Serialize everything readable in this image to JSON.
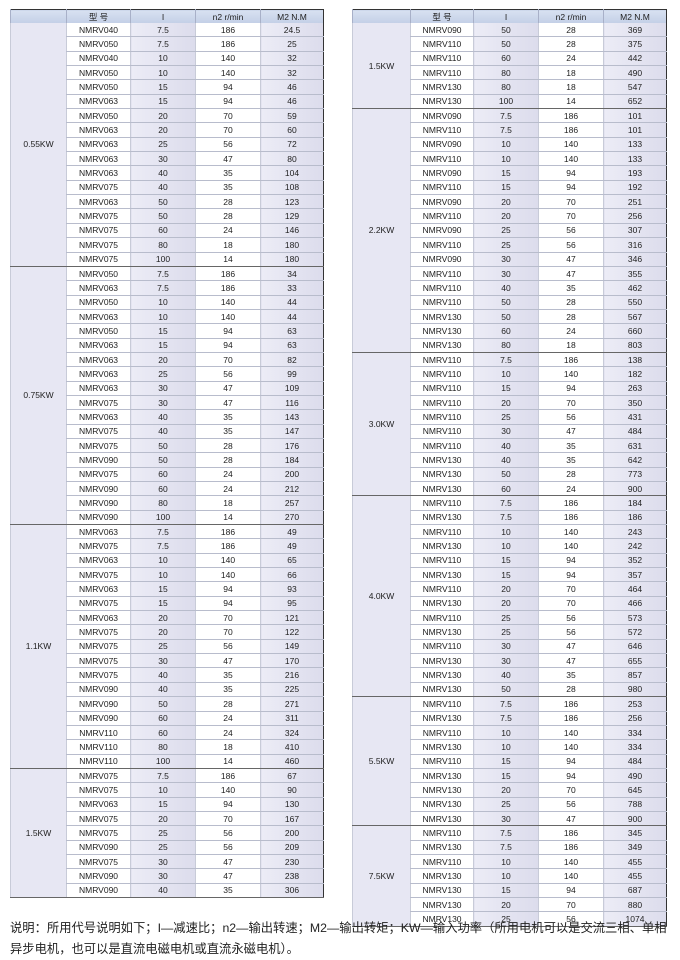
{
  "headers": [
    "",
    "型 号",
    "I",
    "n2 r/min",
    "M2 N.M"
  ],
  "left_table": [
    {
      "power": "0.55KW",
      "rows": [
        [
          "NMRV040",
          "7.5",
          "186",
          "24.5"
        ],
        [
          "NMRV050",
          "7.5",
          "186",
          "25"
        ],
        [
          "NMRV040",
          "10",
          "140",
          "32"
        ],
        [
          "NMRV050",
          "10",
          "140",
          "32"
        ],
        [
          "NMRV050",
          "15",
          "94",
          "46"
        ],
        [
          "NMRV063",
          "15",
          "94",
          "46"
        ],
        [
          "NMRV050",
          "20",
          "70",
          "59"
        ],
        [
          "NMRV063",
          "20",
          "70",
          "60"
        ],
        [
          "NMRV063",
          "25",
          "56",
          "72"
        ],
        [
          "NMRV063",
          "30",
          "47",
          "80"
        ],
        [
          "NMRV063",
          "40",
          "35",
          "104"
        ],
        [
          "NMRV075",
          "40",
          "35",
          "108"
        ],
        [
          "NMRV063",
          "50",
          "28",
          "123"
        ],
        [
          "NMRV075",
          "50",
          "28",
          "129"
        ],
        [
          "NMRV075",
          "60",
          "24",
          "146"
        ],
        [
          "NMRV075",
          "80",
          "18",
          "180"
        ],
        [
          "NMRV075",
          "100",
          "14",
          "180"
        ]
      ]
    },
    {
      "power": "0.75KW",
      "rows": [
        [
          "NMRV050",
          "7.5",
          "186",
          "34"
        ],
        [
          "NMRV063",
          "7.5",
          "186",
          "33"
        ],
        [
          "NMRV050",
          "10",
          "140",
          "44"
        ],
        [
          "NMRV063",
          "10",
          "140",
          "44"
        ],
        [
          "NMRV050",
          "15",
          "94",
          "63"
        ],
        [
          "NMRV063",
          "15",
          "94",
          "63"
        ],
        [
          "NMRV063",
          "20",
          "70",
          "82"
        ],
        [
          "NMRV063",
          "25",
          "56",
          "99"
        ],
        [
          "NMRV063",
          "30",
          "47",
          "109"
        ],
        [
          "NMRV075",
          "30",
          "47",
          "116"
        ],
        [
          "NMRV063",
          "40",
          "35",
          "143"
        ],
        [
          "NMRV075",
          "40",
          "35",
          "147"
        ],
        [
          "NMRV075",
          "50",
          "28",
          "176"
        ],
        [
          "NMRV090",
          "50",
          "28",
          "184"
        ],
        [
          "NMRV075",
          "60",
          "24",
          "200"
        ],
        [
          "NMRV090",
          "60",
          "24",
          "212"
        ],
        [
          "NMRV090",
          "80",
          "18",
          "257"
        ],
        [
          "NMRV090",
          "100",
          "14",
          "270"
        ]
      ]
    },
    {
      "power": "1.1KW",
      "rows": [
        [
          "NMRV063",
          "7.5",
          "186",
          "49"
        ],
        [
          "NMRV075",
          "7.5",
          "186",
          "49"
        ],
        [
          "NMRV063",
          "10",
          "140",
          "65"
        ],
        [
          "NMRV075",
          "10",
          "140",
          "66"
        ],
        [
          "NMRV063",
          "15",
          "94",
          "93"
        ],
        [
          "NMRV075",
          "15",
          "94",
          "95"
        ],
        [
          "NMRV063",
          "20",
          "70",
          "121"
        ],
        [
          "NMRV075",
          "20",
          "70",
          "122"
        ],
        [
          "NMRV075",
          "25",
          "56",
          "149"
        ],
        [
          "NMRV075",
          "30",
          "47",
          "170"
        ],
        [
          "NMRV075",
          "40",
          "35",
          "216"
        ],
        [
          "NMRV090",
          "40",
          "35",
          "225"
        ],
        [
          "NMRV090",
          "50",
          "28",
          "271"
        ],
        [
          "NMRV090",
          "60",
          "24",
          "311"
        ],
        [
          "NMRV110",
          "60",
          "24",
          "324"
        ],
        [
          "NMRV110",
          "80",
          "18",
          "410"
        ],
        [
          "NMRV110",
          "100",
          "14",
          "460"
        ]
      ]
    },
    {
      "power": "1.5KW",
      "rows": [
        [
          "NMRV075",
          "7.5",
          "186",
          "67"
        ],
        [
          "NMRV075",
          "10",
          "140",
          "90"
        ],
        [
          "NMRV063",
          "15",
          "94",
          "130"
        ],
        [
          "NMRV075",
          "20",
          "70",
          "167"
        ],
        [
          "NMRV075",
          "25",
          "56",
          "200"
        ],
        [
          "NMRV090",
          "25",
          "56",
          "209"
        ],
        [
          "NMRV075",
          "30",
          "47",
          "230"
        ],
        [
          "NMRV090",
          "30",
          "47",
          "238"
        ],
        [
          "NMRV090",
          "40",
          "35",
          "306"
        ]
      ]
    }
  ],
  "right_table": [
    {
      "power": "1.5KW",
      "rows": [
        [
          "NMRV090",
          "50",
          "28",
          "369"
        ],
        [
          "NMRV110",
          "50",
          "28",
          "375"
        ],
        [
          "NMRV110",
          "60",
          "24",
          "442"
        ],
        [
          "NMRV110",
          "80",
          "18",
          "490"
        ],
        [
          "NMRV130",
          "80",
          "18",
          "547"
        ],
        [
          "NMRV130",
          "100",
          "14",
          "652"
        ]
      ]
    },
    {
      "power": "2.2KW",
      "rows": [
        [
          "NMRV090",
          "7.5",
          "186",
          "101"
        ],
        [
          "NMRV110",
          "7.5",
          "186",
          "101"
        ],
        [
          "NMRV090",
          "10",
          "140",
          "133"
        ],
        [
          "NMRV110",
          "10",
          "140",
          "133"
        ],
        [
          "NMRV090",
          "15",
          "94",
          "193"
        ],
        [
          "NMRV110",
          "15",
          "94",
          "192"
        ],
        [
          "NMRV090",
          "20",
          "70",
          "251"
        ],
        [
          "NMRV110",
          "20",
          "70",
          "256"
        ],
        [
          "NMRV090",
          "25",
          "56",
          "307"
        ],
        [
          "NMRV110",
          "25",
          "56",
          "316"
        ],
        [
          "NMRV090",
          "30",
          "47",
          "346"
        ],
        [
          "NMRV110",
          "30",
          "47",
          "355"
        ],
        [
          "NMRV110",
          "40",
          "35",
          "462"
        ],
        [
          "NMRV110",
          "50",
          "28",
          "550"
        ],
        [
          "NMRV130",
          "50",
          "28",
          "567"
        ],
        [
          "NMRV130",
          "60",
          "24",
          "660"
        ],
        [
          "NMRV130",
          "80",
          "18",
          "803"
        ]
      ]
    },
    {
      "power": "3.0KW",
      "rows": [
        [
          "NMRV110",
          "7.5",
          "186",
          "138"
        ],
        [
          "NMRV110",
          "10",
          "140",
          "182"
        ],
        [
          "NMRV110",
          "15",
          "94",
          "263"
        ],
        [
          "NMRV110",
          "20",
          "70",
          "350"
        ],
        [
          "NMRV110",
          "25",
          "56",
          "431"
        ],
        [
          "NMRV110",
          "30",
          "47",
          "484"
        ],
        [
          "NMRV110",
          "40",
          "35",
          "631"
        ],
        [
          "NMRV130",
          "40",
          "35",
          "642"
        ],
        [
          "NMRV130",
          "50",
          "28",
          "773"
        ],
        [
          "NMRV130",
          "60",
          "24",
          "900"
        ]
      ]
    },
    {
      "power": "4.0KW",
      "rows": [
        [
          "NMRV110",
          "7.5",
          "186",
          "184"
        ],
        [
          "NMRV130",
          "7.5",
          "186",
          "186"
        ],
        [
          "NMRV110",
          "10",
          "140",
          "243"
        ],
        [
          "NMRV130",
          "10",
          "140",
          "242"
        ],
        [
          "NMRV110",
          "15",
          "94",
          "352"
        ],
        [
          "NMRV130",
          "15",
          "94",
          "357"
        ],
        [
          "NMRV110",
          "20",
          "70",
          "464"
        ],
        [
          "NMRV130",
          "20",
          "70",
          "466"
        ],
        [
          "NMRV110",
          "25",
          "56",
          "573"
        ],
        [
          "NMRV130",
          "25",
          "56",
          "572"
        ],
        [
          "NMRV110",
          "30",
          "47",
          "646"
        ],
        [
          "NMRV130",
          "30",
          "47",
          "655"
        ],
        [
          "NMRV130",
          "40",
          "35",
          "857"
        ],
        [
          "NMRV130",
          "50",
          "28",
          "980"
        ]
      ]
    },
    {
      "power": "5.5KW",
      "rows": [
        [
          "NMRV110",
          "7.5",
          "186",
          "253"
        ],
        [
          "NMRV130",
          "7.5",
          "186",
          "256"
        ],
        [
          "NMRV110",
          "10",
          "140",
          "334"
        ],
        [
          "NMRV130",
          "10",
          "140",
          "334"
        ],
        [
          "NMRV110",
          "15",
          "94",
          "484"
        ],
        [
          "NMRV130",
          "15",
          "94",
          "490"
        ],
        [
          "NMRV130",
          "20",
          "70",
          "645"
        ],
        [
          "NMRV130",
          "25",
          "56",
          "788"
        ],
        [
          "NMRV130",
          "30",
          "47",
          "900"
        ]
      ]
    },
    {
      "power": "7.5KW",
      "rows": [
        [
          "NMRV110",
          "7.5",
          "186",
          "345"
        ],
        [
          "NMRV130",
          "7.5",
          "186",
          "349"
        ],
        [
          "NMRV110",
          "10",
          "140",
          "455"
        ],
        [
          "NMRV130",
          "10",
          "140",
          "455"
        ],
        [
          "NMRV130",
          "15",
          "94",
          "687"
        ],
        [
          "NMRV130",
          "20",
          "70",
          "880"
        ],
        [
          "NMRV130",
          "25",
          "56",
          "1074"
        ]
      ]
    }
  ],
  "note": "说明：所用代号说明如下；I—减速比；n2—输出转速；M2—输出转矩；KW—输入功率（所用电机可以是交流三相、单相异步电机，也可以是直流电磁电机或直流永磁电机）。"
}
